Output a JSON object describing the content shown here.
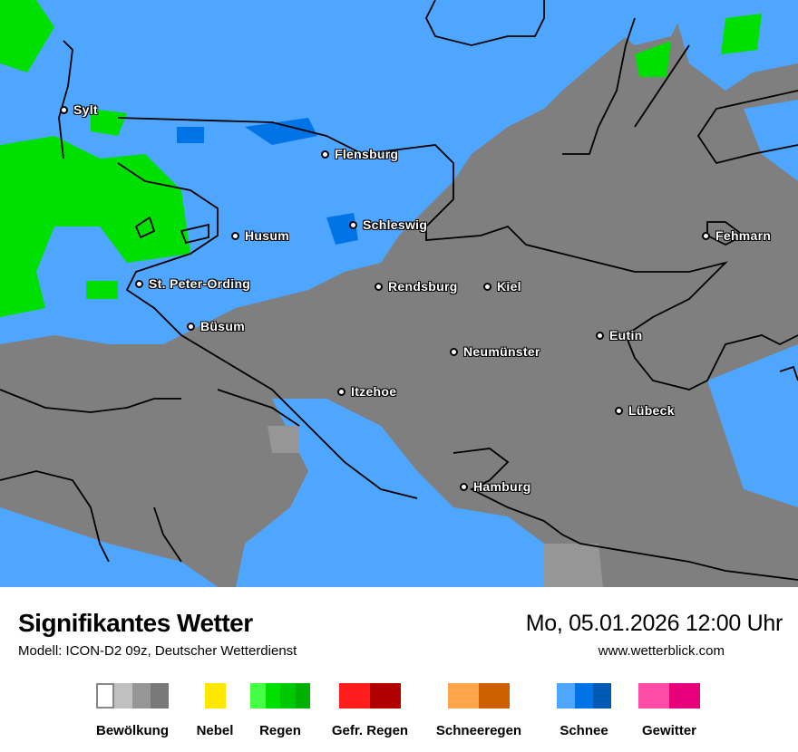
{
  "title": "Signifikantes Wetter",
  "model": "Modell: ICON-D2 09z, Deutscher Wetterdienst",
  "datetime": "Mo, 05.01.2026 12:00 Uhr",
  "website": "www.wetterblick.com",
  "colors": {
    "cloud_gray": "#7f7f7f",
    "snow_light": "#4fa6ff",
    "snow_mid": "#0073e6",
    "snow_dark": "#0059b3",
    "rain": "#00e000",
    "coastline": "#000000"
  },
  "cities": [
    {
      "name": "Sylt"
    },
    {
      "name": "Flensburg"
    },
    {
      "name": "Schleswig"
    },
    {
      "name": "Husum"
    },
    {
      "name": "Fehmarn"
    },
    {
      "name": "St. Peter-Ording"
    },
    {
      "name": "Rendsburg"
    },
    {
      "name": "Kiel"
    },
    {
      "name": "Büsum"
    },
    {
      "name": "Eutin"
    },
    {
      "name": "Neumünster"
    },
    {
      "name": "Itzehoe"
    },
    {
      "name": "Lübeck"
    },
    {
      "name": "Hamburg"
    }
  ],
  "legend": [
    {
      "label": "Bewölkung",
      "colors": [
        "#ffffff",
        "#c0c0c0",
        "#969696",
        "#787878"
      ]
    },
    {
      "label": "Nebel",
      "colors": [
        "#ffe800"
      ]
    },
    {
      "label": "Regen",
      "colors": [
        "#45ff45",
        "#00e000",
        "#00c800",
        "#00b000"
      ]
    },
    {
      "label": "Gefr. Regen",
      "colors": [
        "#ff1c1c",
        "#b00000"
      ]
    },
    {
      "label": "Schneeregen",
      "colors": [
        "#ffa64c",
        "#cc5f00"
      ]
    },
    {
      "label": "Schnee",
      "colors": [
        "#4fa6ff",
        "#0073e6",
        "#0059b3"
      ]
    },
    {
      "label": "Gewitter",
      "colors": [
        "#ff4ca6",
        "#e6007a"
      ]
    }
  ]
}
